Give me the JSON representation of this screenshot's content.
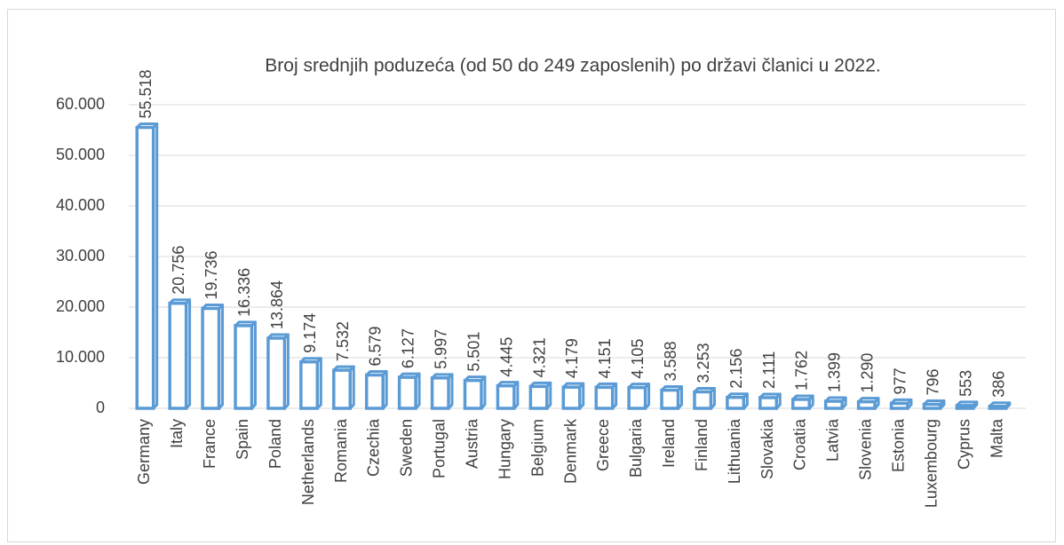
{
  "chart_data": {
    "type": "bar",
    "title": "Broj srednjih poduzeća (od 50 do 249 zaposlenih) po državi članici u 2022.",
    "categories": [
      "Germany",
      "Italy",
      "France",
      "Spain",
      "Poland",
      "Netherlands",
      "Romania",
      "Czechia",
      "Sweden",
      "Portugal",
      "Austria",
      "Hungary",
      "Belgium",
      "Denmark",
      "Greece",
      "Bulgaria",
      "Ireland",
      "Finland",
      "Lithuania",
      "Slovakia",
      "Croatia",
      "Latvia",
      "Slovenia",
      "Estonia",
      "Luxembourg",
      "Cyprus",
      "Malta"
    ],
    "values": [
      55518,
      20756,
      19736,
      16336,
      13864,
      9174,
      7532,
      6579,
      6127,
      5997,
      5501,
      4445,
      4321,
      4179,
      4151,
      4105,
      3588,
      3253,
      2156,
      2111,
      1762,
      1399,
      1290,
      977,
      796,
      553,
      386
    ],
    "value_labels": [
      "55.518",
      "20.756",
      "19.736",
      "16.336",
      "13.864",
      "9.174",
      "7.532",
      "6.579",
      "6.127",
      "5.997",
      "5.501",
      "4.445",
      "4.321",
      "4.179",
      "4.151",
      "4.105",
      "3.588",
      "3.253",
      "2.156",
      "2.111",
      "1.762",
      "1.399",
      "1.290",
      "977",
      "796",
      "553",
      "386"
    ],
    "color": "#5b9bd5",
    "ylim": [
      0,
      60000
    ],
    "yticks": [
      0,
      {
        "value": 10000,
        "label": "10.000"
      },
      {
        "value": 20000,
        "label": "20.000"
      },
      {
        "value": 30000,
        "label": "30.000"
      },
      {
        "value": 40000,
        "label": "40.000"
      },
      {
        "value": 50000,
        "label": "50.000"
      },
      {
        "value": 60000,
        "label": "60.000"
      }
    ],
    "grid": true
  }
}
